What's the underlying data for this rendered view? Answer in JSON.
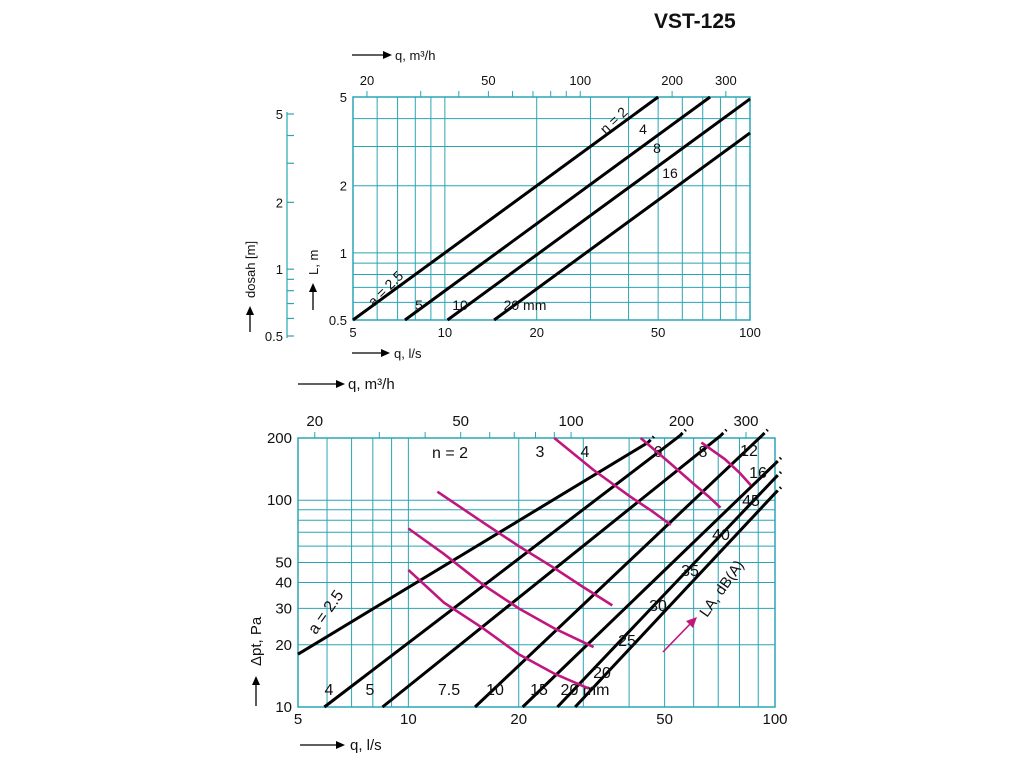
{
  "title": "VST-125",
  "colors": {
    "grid": "#2aa5b5",
    "line": "#000000",
    "noise": "#c0167e",
    "text": "#111111"
  },
  "chart_data": [
    {
      "type": "line",
      "name": "throw",
      "scale": "log-log",
      "xlabel_top": "q, m³/h",
      "xlabel_bottom": "q, l/s",
      "ylabel": "L, m",
      "ylabel_left": "dosah [m]",
      "xlim": [
        5,
        100
      ],
      "ylim": [
        0.5,
        5
      ],
      "xticks_bottom": [
        5,
        10,
        20,
        50,
        100
      ],
      "xticks_top": [
        20,
        50,
        100,
        200,
        300
      ],
      "yticks": [
        0.5,
        1,
        2,
        5
      ],
      "yticks_left": [
        0.5,
        1,
        2,
        5
      ],
      "series": [
        {
          "name": "n = 2",
          "label": "n = 2",
          "x": [
            5,
            50
          ],
          "y": [
            0.5,
            5
          ]
        },
        {
          "name": "4",
          "label": "4",
          "x": [
            7.4,
            74
          ],
          "y": [
            0.5,
            5
          ]
        },
        {
          "name": "8",
          "label": "8",
          "x": [
            10.2,
            100
          ],
          "y": [
            0.5,
            4.9
          ]
        },
        {
          "name": "16",
          "label": "16",
          "x": [
            14.5,
            100
          ],
          "y": [
            0.5,
            3.45
          ]
        }
      ],
      "a_labels": [
        "a = 2.5",
        "5",
        "10",
        "20 mm"
      ]
    },
    {
      "type": "line",
      "name": "pressure",
      "scale": "log-log",
      "xlabel_top": "q, m³/h",
      "xlabel_bottom": "q, l/s",
      "ylabel": "Δpt, Pa",
      "xlim": [
        5,
        100
      ],
      "ylim": [
        10,
        200
      ],
      "xticks_bottom": [
        5,
        10,
        20,
        50,
        100
      ],
      "xticks_top": [
        20,
        50,
        100,
        200,
        300
      ],
      "yticks": [
        10,
        20,
        30,
        40,
        50,
        100,
        200
      ],
      "series": [
        {
          "name": "n = 2",
          "label": "n = 2",
          "x": [
            5,
            45
          ],
          "y": [
            18,
            190
          ]
        },
        {
          "name": "3",
          "label": "3",
          "x": [
            5.9,
            55
          ],
          "y": [
            10,
            205
          ]
        },
        {
          "name": "4",
          "label": "4",
          "x": [
            8.5,
            71
          ],
          "y": [
            10,
            205
          ]
        },
        {
          "name": "6",
          "label": "6",
          "x": [
            15.2,
            92
          ],
          "y": [
            10,
            205
          ]
        },
        {
          "name": "8",
          "label": "8",
          "x": [
            20.5,
            100
          ],
          "y": [
            10,
            150
          ]
        },
        {
          "name": "12",
          "label": "12",
          "x": [
            25.5,
            100
          ],
          "y": [
            10,
            128
          ]
        },
        {
          "name": "16",
          "label": "16",
          "x": [
            28.5,
            100
          ],
          "y": [
            10,
            108
          ]
        }
      ],
      "a_labels": [
        "a = 2.5",
        "4",
        "5",
        "7.5",
        "10",
        "15",
        "20 mm"
      ],
      "noise_label": "LA, dB(A)",
      "noise_series": [
        {
          "name": "20",
          "label": "20",
          "x": [
            10,
            12.5,
            16,
            20,
            25,
            31
          ],
          "y": [
            46,
            32,
            24,
            18,
            14.5,
            12.3
          ]
        },
        {
          "name": "25",
          "label": "25",
          "x": [
            10,
            12.5,
            16,
            20,
            25,
            32
          ],
          "y": [
            73,
            55,
            39,
            30,
            24,
            19.5
          ]
        },
        {
          "name": "30",
          "label": "30",
          "x": [
            12,
            16,
            20,
            25,
            30,
            36
          ],
          "y": [
            110,
            78,
            60,
            47,
            38,
            31
          ]
        },
        {
          "name": "35",
          "label": "35",
          "x": [
            25,
            32,
            40,
            46,
            52
          ],
          "y": [
            200,
            140,
            105,
            89,
            76
          ]
        },
        {
          "name": "40",
          "label": "40",
          "x": [
            43,
            52,
            60,
            66,
            71
          ],
          "y": [
            200,
            150,
            120,
            104,
            92
          ]
        },
        {
          "name": "45",
          "label": "45",
          "x": [
            63,
            73,
            80,
            86
          ],
          "y": [
            190,
            158,
            136,
            118
          ]
        }
      ]
    }
  ]
}
